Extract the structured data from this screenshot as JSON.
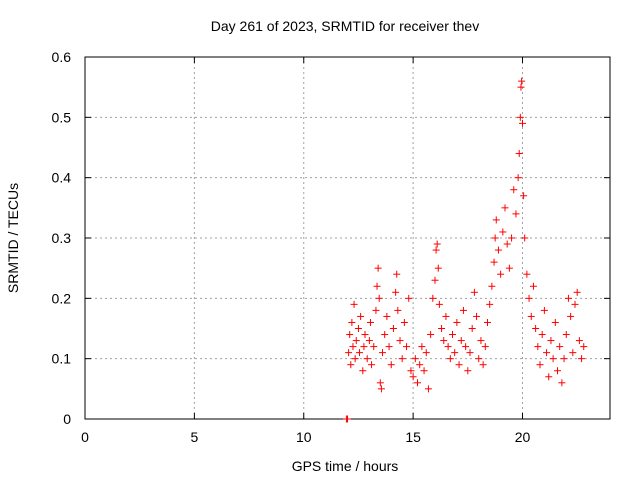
{
  "chart_data": {
    "type": "scatter",
    "title": "Day 261 of 2023, SRMTID for receiver thev",
    "xlabel": "GPS time / hours",
    "ylabel": "SRMTID / TECUs",
    "xlim": [
      0,
      24
    ],
    "ylim": [
      0,
      0.6
    ],
    "x_ticks": [
      0,
      5,
      10,
      15,
      20
    ],
    "x_tick_labels": [
      "0",
      "5",
      "10",
      "15",
      "20"
    ],
    "y_ticks": [
      0,
      0.1,
      0.2,
      0.3,
      0.4,
      0.5,
      0.6
    ],
    "y_tick_labels": [
      "0",
      "0.1",
      "0.2",
      "0.3",
      "0.4",
      "0.5",
      "0.6"
    ],
    "grid": true,
    "marker": "plus",
    "series": [
      {
        "name": "SRMTID",
        "color": "#ff0000",
        "points": [
          [
            11.95,
            0.0
          ],
          [
            12.0,
            0.0
          ],
          [
            12.05,
            0.11
          ],
          [
            12.1,
            0.14
          ],
          [
            12.15,
            0.09
          ],
          [
            12.2,
            0.16
          ],
          [
            12.25,
            0.12
          ],
          [
            12.3,
            0.19
          ],
          [
            12.35,
            0.1
          ],
          [
            12.4,
            0.13
          ],
          [
            12.5,
            0.15
          ],
          [
            12.55,
            0.11
          ],
          [
            12.6,
            0.17
          ],
          [
            12.7,
            0.08
          ],
          [
            12.75,
            0.12
          ],
          [
            12.8,
            0.14
          ],
          [
            12.9,
            0.1
          ],
          [
            13.0,
            0.13
          ],
          [
            13.05,
            0.16
          ],
          [
            13.1,
            0.09
          ],
          [
            13.2,
            0.12
          ],
          [
            13.3,
            0.18
          ],
          [
            13.35,
            0.22
          ],
          [
            13.4,
            0.25
          ],
          [
            13.45,
            0.2
          ],
          [
            13.5,
            0.06
          ],
          [
            13.55,
            0.05
          ],
          [
            13.6,
            0.11
          ],
          [
            13.7,
            0.14
          ],
          [
            13.8,
            0.17
          ],
          [
            13.9,
            0.12
          ],
          [
            14.0,
            0.09
          ],
          [
            14.1,
            0.15
          ],
          [
            14.2,
            0.21
          ],
          [
            14.25,
            0.24
          ],
          [
            14.3,
            0.18
          ],
          [
            14.4,
            0.13
          ],
          [
            14.5,
            0.1
          ],
          [
            14.6,
            0.16
          ],
          [
            14.7,
            0.12
          ],
          [
            14.8,
            0.2
          ],
          [
            14.9,
            0.08
          ],
          [
            15.0,
            0.07
          ],
          [
            15.1,
            0.1
          ],
          [
            15.2,
            0.06
          ],
          [
            15.3,
            0.09
          ],
          [
            15.4,
            0.12
          ],
          [
            15.5,
            0.08
          ],
          [
            15.6,
            0.11
          ],
          [
            15.7,
            0.05
          ],
          [
            15.8,
            0.14
          ],
          [
            15.9,
            0.2
          ],
          [
            16.0,
            0.23
          ],
          [
            16.05,
            0.28
          ],
          [
            16.1,
            0.29
          ],
          [
            16.15,
            0.25
          ],
          [
            16.2,
            0.19
          ],
          [
            16.3,
            0.15
          ],
          [
            16.4,
            0.13
          ],
          [
            16.5,
            0.17
          ],
          [
            16.6,
            0.12
          ],
          [
            16.7,
            0.1
          ],
          [
            16.8,
            0.14
          ],
          [
            16.9,
            0.11
          ],
          [
            17.0,
            0.16
          ],
          [
            17.1,
            0.09
          ],
          [
            17.2,
            0.13
          ],
          [
            17.3,
            0.18
          ],
          [
            17.4,
            0.12
          ],
          [
            17.5,
            0.08
          ],
          [
            17.6,
            0.11
          ],
          [
            17.7,
            0.15
          ],
          [
            17.8,
            0.21
          ],
          [
            17.9,
            0.17
          ],
          [
            18.0,
            0.1
          ],
          [
            18.1,
            0.13
          ],
          [
            18.2,
            0.09
          ],
          [
            18.3,
            0.12
          ],
          [
            18.4,
            0.16
          ],
          [
            18.5,
            0.19
          ],
          [
            18.6,
            0.22
          ],
          [
            18.7,
            0.26
          ],
          [
            18.75,
            0.3
          ],
          [
            18.8,
            0.33
          ],
          [
            18.9,
            0.28
          ],
          [
            19.0,
            0.24
          ],
          [
            19.1,
            0.31
          ],
          [
            19.2,
            0.35
          ],
          [
            19.3,
            0.29
          ],
          [
            19.4,
            0.25
          ],
          [
            19.5,
            0.3
          ],
          [
            19.6,
            0.38
          ],
          [
            19.7,
            0.34
          ],
          [
            19.8,
            0.4
          ],
          [
            19.85,
            0.44
          ],
          [
            19.9,
            0.5
          ],
          [
            19.93,
            0.55
          ],
          [
            19.96,
            0.56
          ],
          [
            20.0,
            0.49
          ],
          [
            20.05,
            0.37
          ],
          [
            20.1,
            0.3
          ],
          [
            20.2,
            0.24
          ],
          [
            20.3,
            0.2
          ],
          [
            20.4,
            0.17
          ],
          [
            20.5,
            0.22
          ],
          [
            20.6,
            0.15
          ],
          [
            20.7,
            0.12
          ],
          [
            20.8,
            0.09
          ],
          [
            20.9,
            0.14
          ],
          [
            21.0,
            0.18
          ],
          [
            21.1,
            0.11
          ],
          [
            21.2,
            0.07
          ],
          [
            21.3,
            0.13
          ],
          [
            21.4,
            0.1
          ],
          [
            21.5,
            0.16
          ],
          [
            21.6,
            0.08
          ],
          [
            21.7,
            0.12
          ],
          [
            21.8,
            0.06
          ],
          [
            21.9,
            0.1
          ],
          [
            22.0,
            0.14
          ],
          [
            22.1,
            0.2
          ],
          [
            22.2,
            0.17
          ],
          [
            22.3,
            0.11
          ],
          [
            22.4,
            0.19
          ],
          [
            22.5,
            0.21
          ],
          [
            22.6,
            0.13
          ],
          [
            22.7,
            0.1
          ],
          [
            22.8,
            0.12
          ]
        ]
      }
    ]
  }
}
